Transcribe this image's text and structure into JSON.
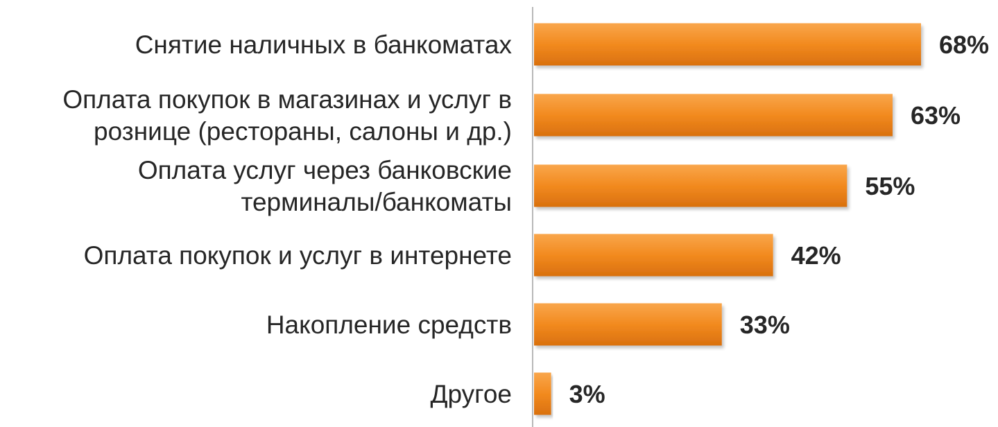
{
  "chart_data": {
    "type": "bar",
    "orientation": "horizontal",
    "categories": [
      "Снятие наличных в банкоматах",
      "Оплата покупок в магазинах и услуг в розницe (рестораны, салоны и др.)",
      "Оплата услуг через банковские терминалы/банкоматы",
      "Оплата покупок и услуг в интернете",
      "Накопление средств",
      "Другое"
    ],
    "category_lines": [
      [
        "Снятие наличных в банкоматах"
      ],
      [
        "Оплата покупок в магазинах и услуг в",
        "рознице (рестораны, салоны и др.)"
      ],
      [
        "Оплата услуг через банковские",
        "терминалы/банкоматы"
      ],
      [
        "Оплата покупок и услуг в интернете"
      ],
      [
        "Накопление средств"
      ],
      [
        "Другое"
      ]
    ],
    "values": [
      68,
      63,
      55,
      42,
      33,
      3
    ],
    "value_labels": [
      "68%",
      "63%",
      "55%",
      "42%",
      "33%",
      "3%"
    ],
    "unit": "%",
    "xlim": [
      0,
      68
    ],
    "grid": false,
    "legend": "none",
    "bar_color": "#f28a1f"
  }
}
